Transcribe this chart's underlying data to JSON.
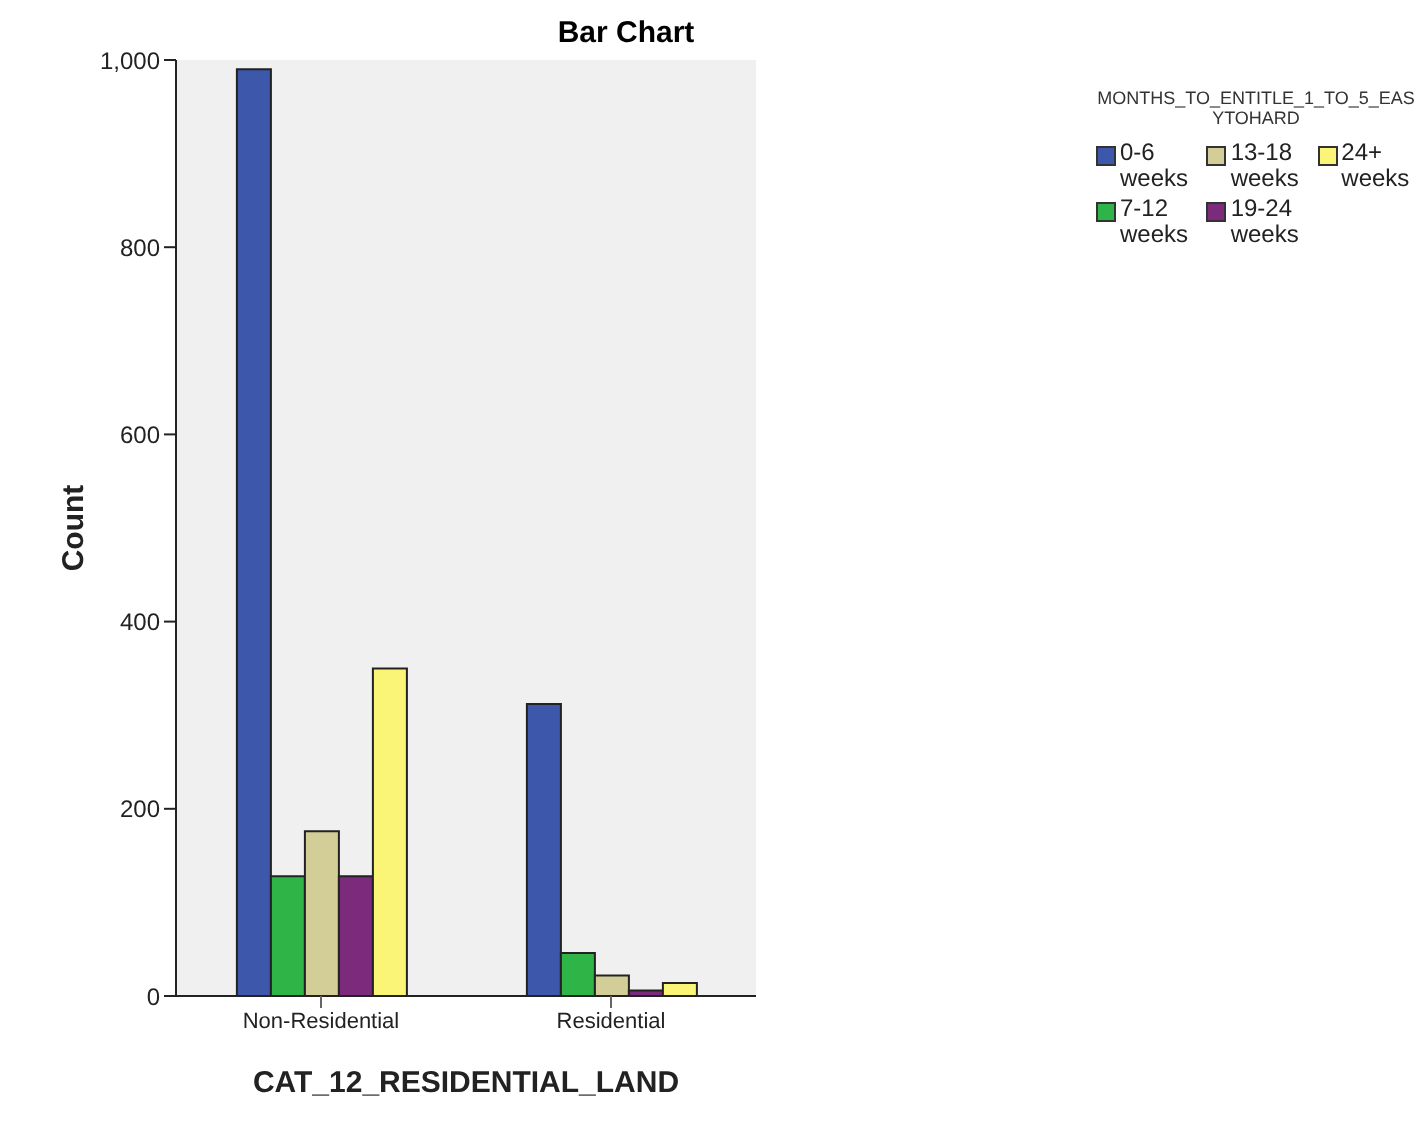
{
  "chart_data": {
    "type": "bar",
    "title": "Bar Chart",
    "xlabel": "CAT_12_RESIDENTIAL_LAND",
    "ylabel": "Count",
    "legend_title": "MONTHS_TO_ENTITLE_1_TO_5_EASYTOHARD",
    "categories": [
      "Non-Residential",
      "Residential"
    ],
    "series": [
      {
        "name": "0-6 weeks",
        "color": "#3d57ab",
        "values": [
          990,
          312
        ]
      },
      {
        "name": "7-12 weeks",
        "color": "#2fb447",
        "values": [
          128,
          46
        ]
      },
      {
        "name": "13-18 weeks",
        "color": "#d3ce97",
        "values": [
          176,
          22
        ]
      },
      {
        "name": "19-24 weeks",
        "color": "#7c2a7c",
        "values": [
          128,
          6
        ]
      },
      {
        "name": "24+ weeks",
        "color": "#fbf577",
        "values": [
          350,
          14
        ]
      }
    ],
    "ylim": [
      0,
      1000
    ],
    "yticks": [
      0,
      200,
      400,
      600,
      800,
      {
        "value": 1000,
        "label": "1,000"
      }
    ],
    "grid": false,
    "legend": "top right"
  }
}
